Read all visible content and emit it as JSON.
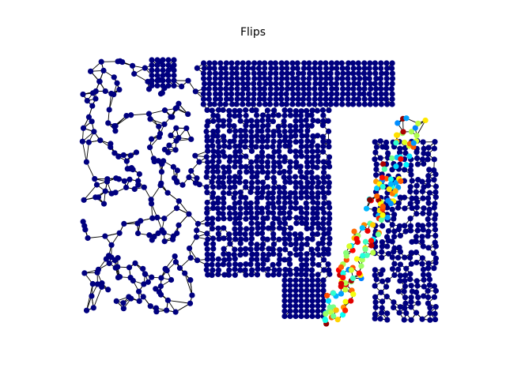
{
  "figure": {
    "title": "Flips"
  },
  "colors": {
    "base_node": "#00007f",
    "edge": "#000000",
    "background": "#ffffff",
    "colormap": "jet"
  }
}
